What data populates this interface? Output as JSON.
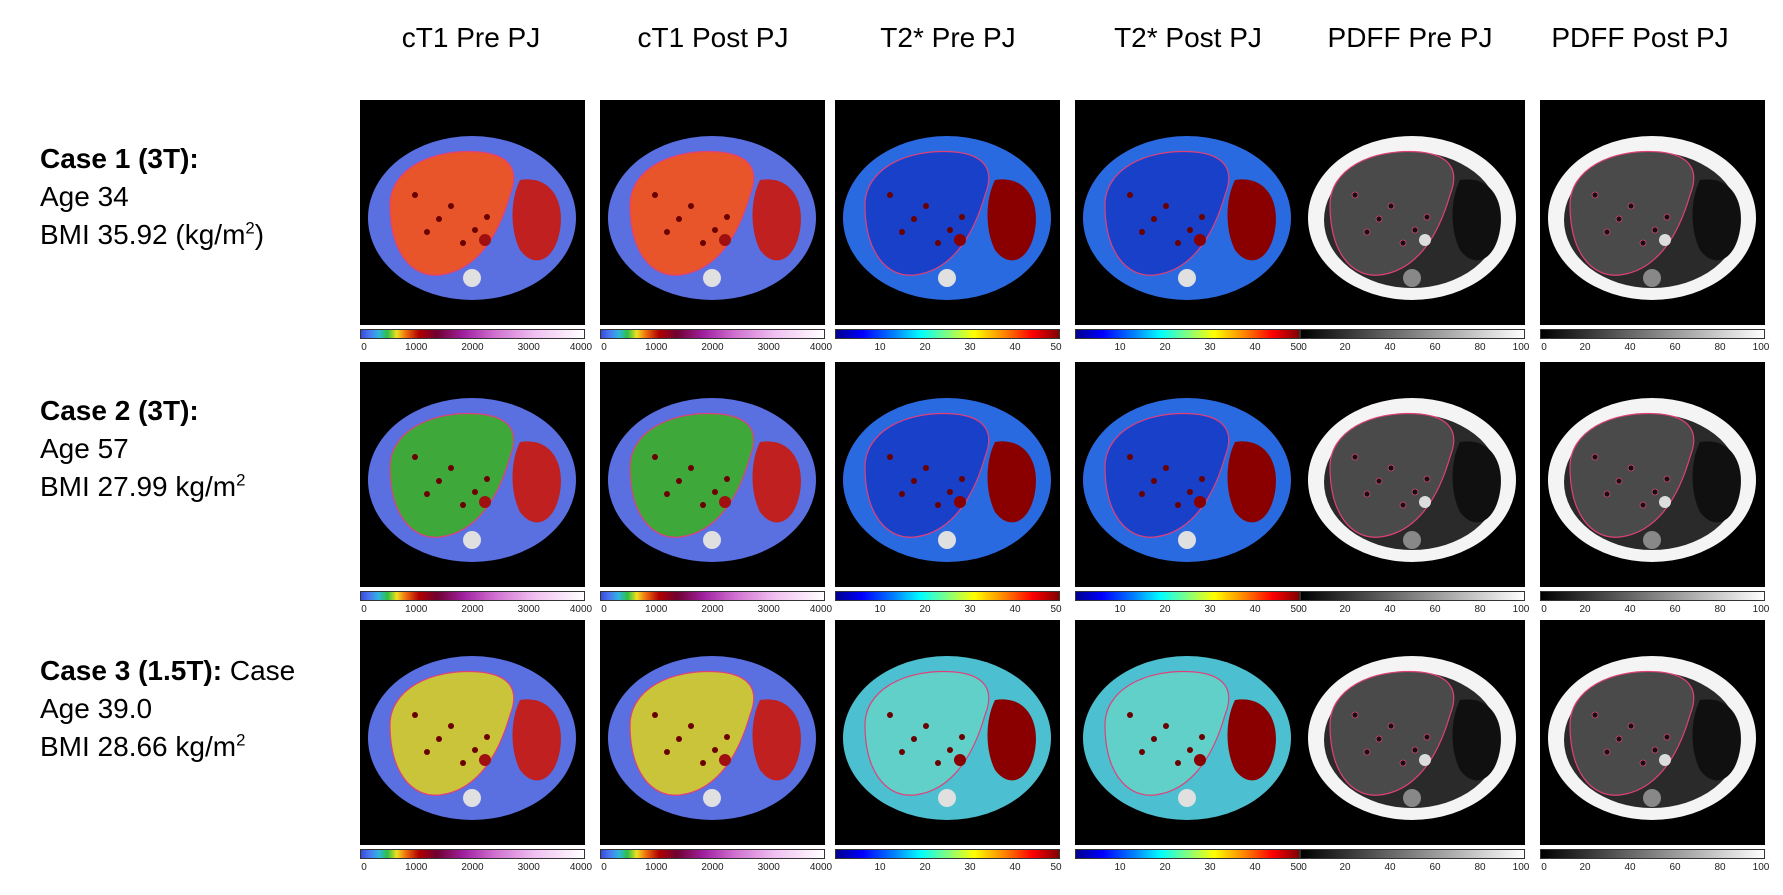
{
  "columns": [
    {
      "title": "cT1 Pre PJ",
      "scale": "ct1"
    },
    {
      "title": "cT1 Post PJ",
      "scale": "ct1"
    },
    {
      "title": "T2* Pre PJ",
      "scale": "t2"
    },
    {
      "title": "T2* Post PJ",
      "scale": "t2"
    },
    {
      "title": "PDFF Pre PJ",
      "scale": "pdff"
    },
    {
      "title": "PDFF Post PJ",
      "scale": "pdff"
    }
  ],
  "cases": [
    {
      "name": "Case 1 (3T):",
      "name_suffix": "",
      "age": "Age 34",
      "bmi_prefix": "BMI 35.92 (kg/m",
      "bmi_sup": "2",
      "bmi_suffix": ")"
    },
    {
      "name": "Case 2 (3T):",
      "name_suffix": "",
      "age": "Age 57",
      "bmi_prefix": "BMI 27.99 kg/m",
      "bmi_sup": "2",
      "bmi_suffix": ""
    },
    {
      "name": "Case 3 (1.5T):",
      "name_suffix": " Case",
      "age": "Age 39.0",
      "bmi_prefix": "BMI 28.66 kg/m",
      "bmi_sup": "2",
      "bmi_suffix": ""
    }
  ],
  "scales": {
    "ct1": {
      "ticks": [
        "0",
        "1000",
        "2000",
        "3000",
        "4000"
      ],
      "min": 0,
      "max": 4000
    },
    "t2": {
      "ticks": [
        "10",
        "20",
        "30",
        "40",
        "50"
      ],
      "min": 0,
      "max": 50
    },
    "pdff": {
      "ticks": [
        "0",
        "20",
        "40",
        "60",
        "80",
        "100"
      ],
      "min": 0,
      "max": 100
    }
  },
  "colors": {
    "ct1_body": "#5a6fe0",
    "ct1_liver_case1": "#e8552a",
    "ct1_liver_case2": "#3fa83a",
    "ct1_liver_case3": "#c9c43a",
    "t2_body": "#2a6ae0",
    "t2_body_case3": "#4cc0d0",
    "t2_liver": "#1840c8",
    "t2_hot": "#8a0000",
    "pdff_body": "#f4f4f4",
    "pdff_liver": "#4a4a4a",
    "contour": "#e0407a"
  }
}
